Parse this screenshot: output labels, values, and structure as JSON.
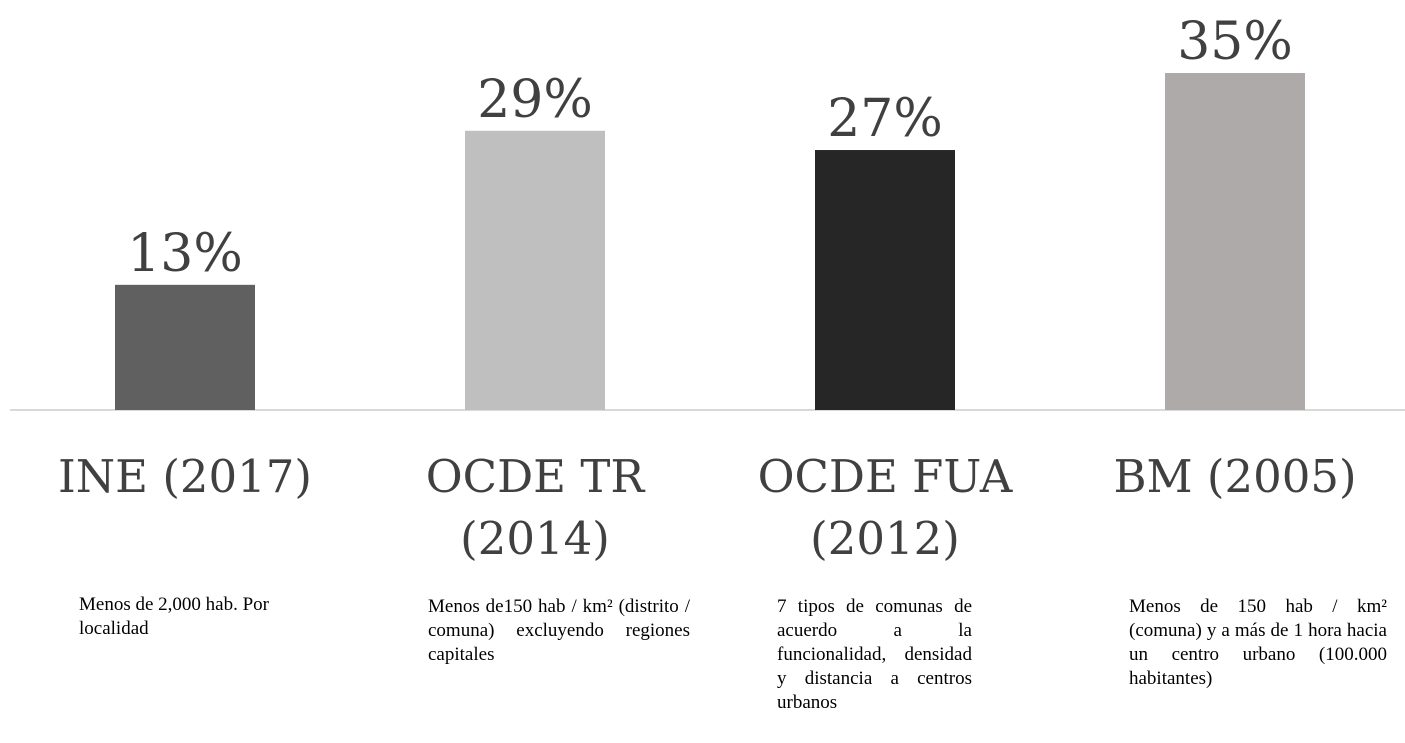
{
  "chart_data": {
    "type": "bar",
    "categories": [
      "INE (2017)",
      "OCDE TR (2014)",
      "OCDE FUA (2012)",
      "BM (2005)"
    ],
    "values": [
      13,
      29,
      27,
      35
    ],
    "value_labels": [
      "13%",
      "29%",
      "27%",
      "35%"
    ],
    "colors": [
      "#606060",
      "#bfbfbf",
      "#262626",
      "#aeaaaa"
    ],
    "descriptions": [
      "Menos de 2,000 hab. Por localidad",
      "Menos de150 hab / km² (distrito / comuna) excluyendo regiones capitales",
      "7 tipos de comunas de acuerdo a la funcionalidad, densidad y distancia a centros urbanos",
      "Menos de 150 hab / km² (comuna) y a más de 1 hora hacia un centro urbano (100.000 habitantes)"
    ]
  }
}
